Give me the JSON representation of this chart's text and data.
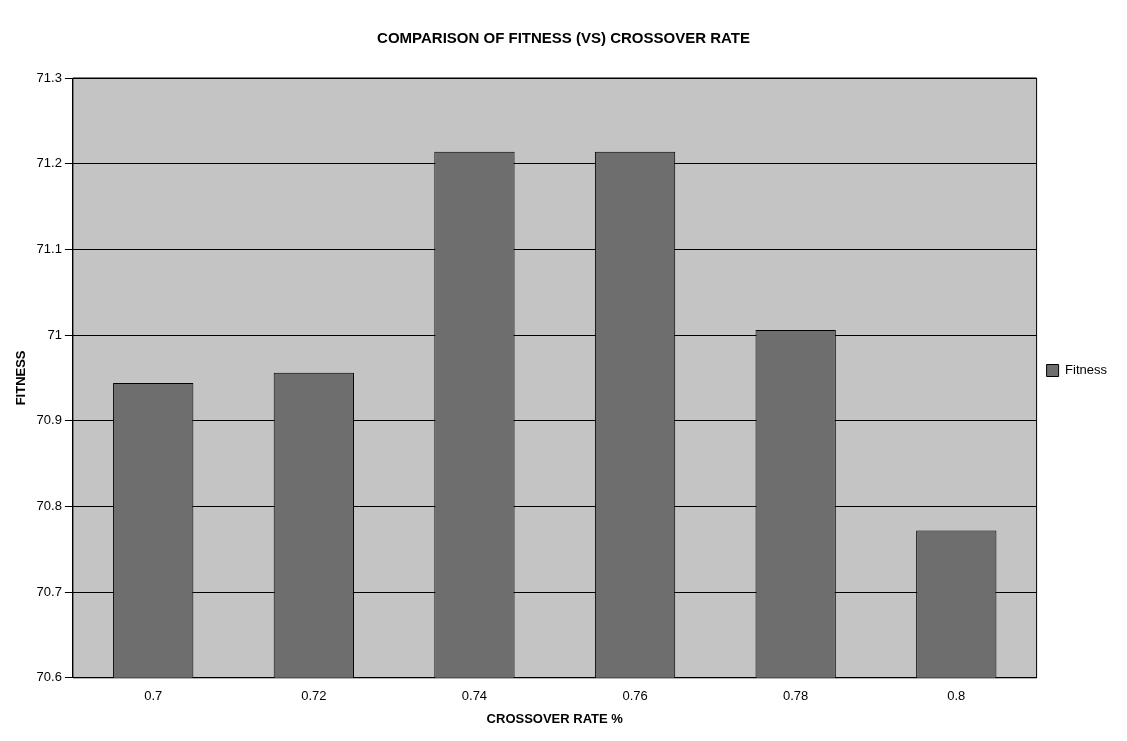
{
  "chart_data": {
    "type": "bar",
    "title": "COMPARISON OF FITNESS (VS) CROSSOVER RATE",
    "xlabel": "CROSSOVER RATE %",
    "ylabel": "FITNESS",
    "categories": [
      "0.7",
      "0.72",
      "0.74",
      "0.76",
      "0.78",
      "0.8"
    ],
    "series": [
      {
        "name": "Fitness",
        "color": "#6e6e6e",
        "values": [
          70.944,
          70.956,
          71.214,
          71.214,
          71.006,
          70.772
        ]
      }
    ],
    "ylim": [
      70.6,
      71.3
    ],
    "yticks": [
      70.6,
      70.7,
      70.8,
      70.9,
      71,
      71.1,
      71.2,
      71.3
    ],
    "grid": "y",
    "legend": "right"
  }
}
